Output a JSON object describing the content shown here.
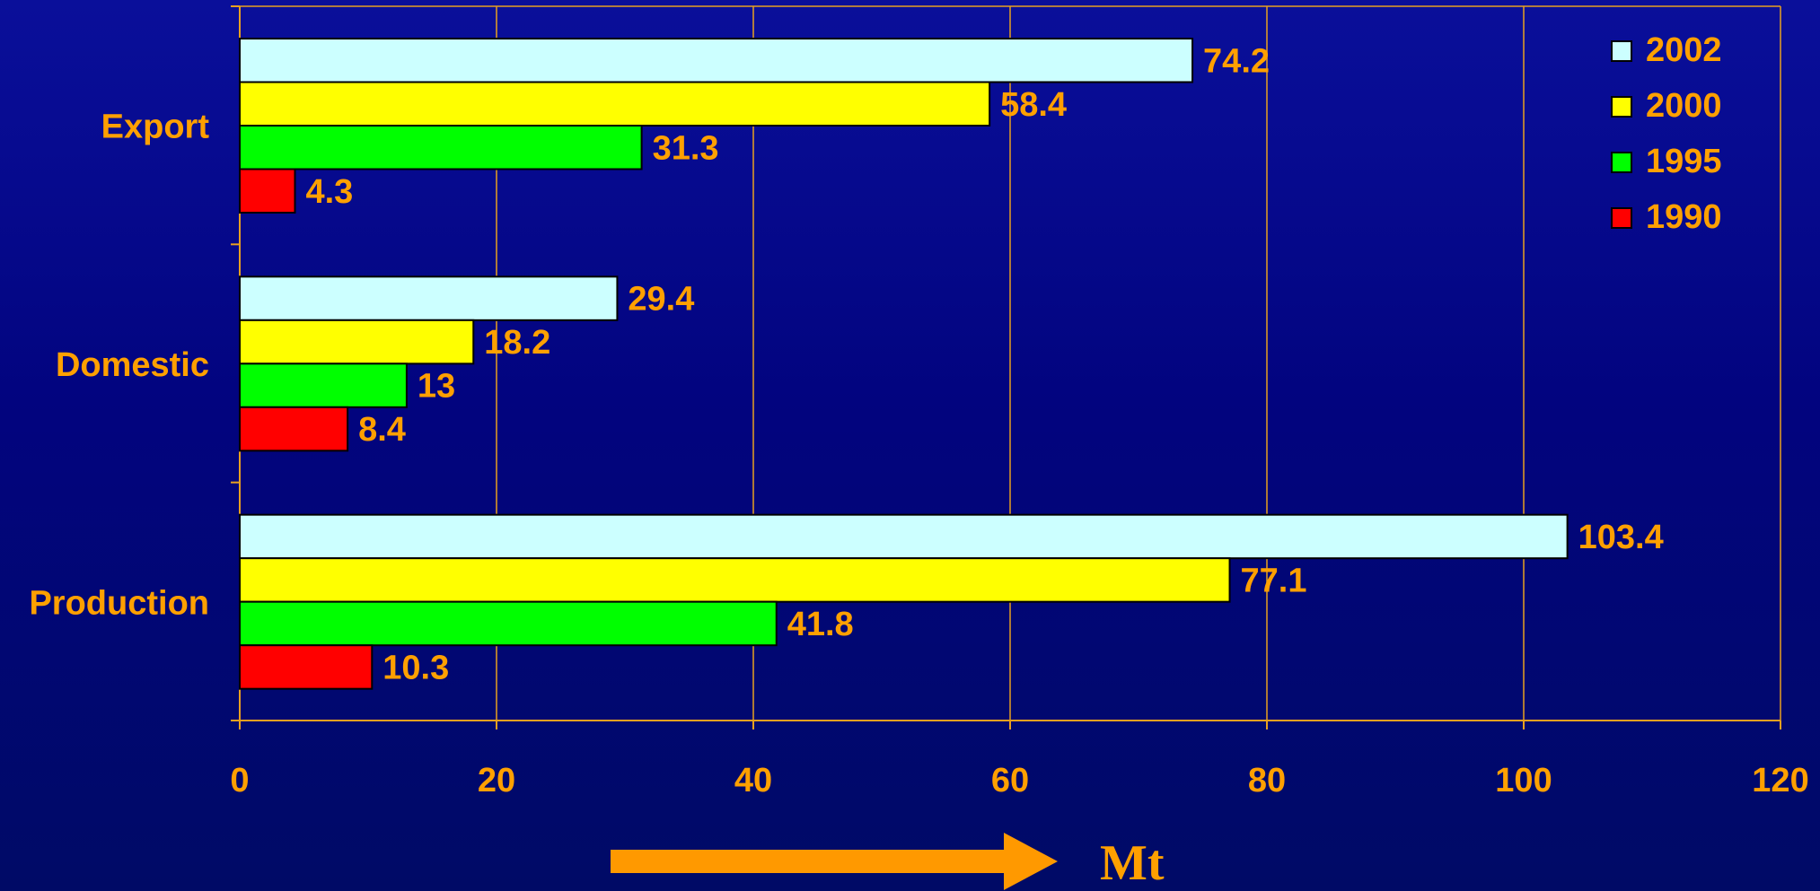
{
  "chart_data": {
    "type": "bar",
    "orientation": "horizontal",
    "categories": [
      "Export",
      "Domestic",
      "Production"
    ],
    "series": [
      {
        "name": "2002",
        "values": [
          74.2,
          29.4,
          103.4
        ],
        "color": "#ccffff"
      },
      {
        "name": "2000",
        "values": [
          58.4,
          18.2,
          77.1
        ],
        "color": "#ffff00"
      },
      {
        "name": "1995",
        "values": [
          31.3,
          13,
          41.8
        ],
        "color": "#00ff00"
      },
      {
        "name": "1990",
        "values": [
          4.3,
          8.4,
          10.3
        ],
        "color": "#ff0000"
      }
    ],
    "value_labels": [
      [
        "74.2",
        "29.4",
        "103.4"
      ],
      [
        "58.4",
        "18.2",
        "77.1"
      ],
      [
        "31.3",
        "13",
        "41.8"
      ],
      [
        "4.3",
        "8.4",
        "10.3"
      ]
    ],
    "xlim": [
      0,
      120
    ],
    "x_ticks": [
      0,
      20,
      40,
      60,
      80,
      100,
      120
    ],
    "x_tick_labels": [
      "0",
      "20",
      "40",
      "60",
      "80",
      "100",
      "120"
    ],
    "xlabel": "Mt",
    "ylabel": "",
    "title": "",
    "grid": "vertical",
    "legend": {
      "position": "top-right",
      "entries": [
        "2002",
        "2000",
        "1995",
        "1990"
      ]
    }
  },
  "colors": {
    "text": "#ffa000",
    "grid": "#e8a020",
    "arrow": "#ff9900",
    "bar_outline": "#000000"
  }
}
